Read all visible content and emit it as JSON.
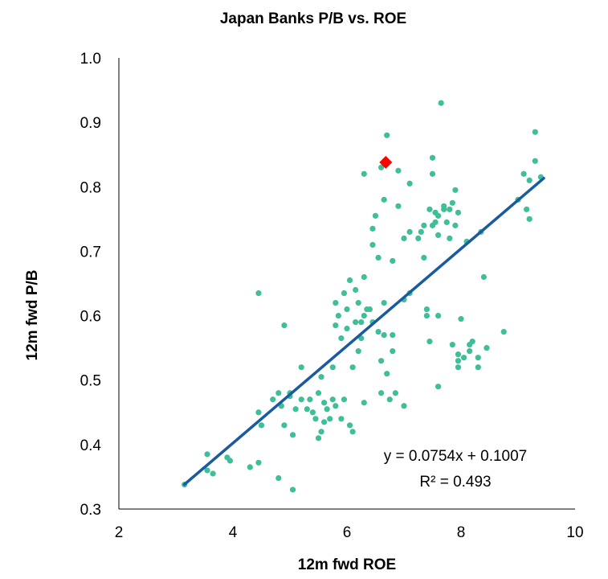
{
  "chart_data": {
    "type": "scatter",
    "title": "Japan Banks P/B vs. ROE",
    "xlabel": "12m fwd ROE",
    "ylabel": "12m fwd P/B",
    "xlim": [
      2,
      10
    ],
    "ylim": [
      0.3,
      1.0
    ],
    "xticks": [
      "2",
      "4",
      "6",
      "8",
      "10"
    ],
    "yticks": [
      "1.0",
      "0.9",
      "0.8",
      "0.7",
      "0.6",
      "0.5",
      "0.4",
      "0.3"
    ],
    "grid": false,
    "colors": {
      "points": "#3dbf9a",
      "highlight": "#ff0000",
      "trendline": "#1a5a9e",
      "axis": "#000000"
    },
    "series": [
      {
        "points": [
          [
            3.15,
            0.338
          ],
          [
            3.55,
            0.385
          ],
          [
            3.65,
            0.355
          ],
          [
            3.55,
            0.36
          ],
          [
            3.9,
            0.38
          ],
          [
            3.95,
            0.375
          ],
          [
            4.3,
            0.365
          ],
          [
            4.45,
            0.372
          ],
          [
            4.8,
            0.348
          ],
          [
            5.05,
            0.33
          ],
          [
            4.45,
            0.635
          ],
          [
            4.45,
            0.45
          ],
          [
            4.5,
            0.43
          ],
          [
            4.7,
            0.47
          ],
          [
            4.8,
            0.48
          ],
          [
            4.85,
            0.46
          ],
          [
            4.9,
            0.585
          ],
          [
            4.9,
            0.43
          ],
          [
            5.0,
            0.48
          ],
          [
            5.0,
            0.475
          ],
          [
            5.05,
            0.415
          ],
          [
            5.1,
            0.455
          ],
          [
            5.2,
            0.47
          ],
          [
            5.2,
            0.52
          ],
          [
            5.3,
            0.455
          ],
          [
            5.35,
            0.47
          ],
          [
            5.4,
            0.45
          ],
          [
            5.45,
            0.44
          ],
          [
            5.5,
            0.41
          ],
          [
            5.5,
            0.48
          ],
          [
            5.55,
            0.505
          ],
          [
            5.55,
            0.42
          ],
          [
            5.6,
            0.435
          ],
          [
            5.6,
            0.465
          ],
          [
            5.65,
            0.455
          ],
          [
            5.7,
            0.44
          ],
          [
            5.75,
            0.47
          ],
          [
            5.8,
            0.46
          ],
          [
            5.9,
            0.44
          ],
          [
            5.95,
            0.47
          ],
          [
            5.75,
            0.52
          ],
          [
            5.8,
            0.585
          ],
          [
            5.8,
            0.62
          ],
          [
            5.85,
            0.6
          ],
          [
            5.9,
            0.565
          ],
          [
            5.95,
            0.635
          ],
          [
            6.0,
            0.58
          ],
          [
            6.0,
            0.61
          ],
          [
            6.05,
            0.655
          ],
          [
            6.05,
            0.43
          ],
          [
            6.1,
            0.52
          ],
          [
            6.1,
            0.42
          ],
          [
            6.15,
            0.59
          ],
          [
            6.15,
            0.64
          ],
          [
            6.2,
            0.545
          ],
          [
            6.2,
            0.62
          ],
          [
            6.25,
            0.565
          ],
          [
            6.25,
            0.59
          ],
          [
            6.3,
            0.66
          ],
          [
            6.3,
            0.6
          ],
          [
            6.3,
            0.465
          ],
          [
            6.35,
            0.61
          ],
          [
            6.4,
            0.61
          ],
          [
            6.45,
            0.59
          ],
          [
            6.3,
            0.82
          ],
          [
            6.45,
            0.71
          ],
          [
            6.45,
            0.735
          ],
          [
            6.5,
            0.755
          ],
          [
            6.55,
            0.69
          ],
          [
            6.55,
            0.575
          ],
          [
            6.6,
            0.53
          ],
          [
            6.6,
            0.48
          ],
          [
            6.65,
            0.57
          ],
          [
            6.6,
            0.83
          ],
          [
            6.7,
            0.88
          ],
          [
            6.65,
            0.78
          ],
          [
            6.65,
            0.62
          ],
          [
            6.7,
            0.51
          ],
          [
            6.75,
            0.47
          ],
          [
            6.8,
            0.685
          ],
          [
            6.8,
            0.57
          ],
          [
            6.8,
            0.545
          ],
          [
            6.85,
            0.48
          ],
          [
            6.9,
            0.825
          ],
          [
            6.9,
            0.77
          ],
          [
            7.0,
            0.72
          ],
          [
            7.0,
            0.46
          ],
          [
            7.1,
            0.805
          ],
          [
            7.1,
            0.73
          ],
          [
            7.1,
            0.635
          ],
          [
            7.25,
            0.72
          ],
          [
            7.3,
            0.73
          ],
          [
            7.35,
            0.74
          ],
          [
            7.35,
            0.69
          ],
          [
            7.4,
            0.6
          ],
          [
            7.4,
            0.61
          ],
          [
            7.45,
            0.56
          ],
          [
            7.45,
            0.765
          ],
          [
            7.5,
            0.845
          ],
          [
            7.5,
            0.82
          ],
          [
            7.55,
            0.76
          ],
          [
            7.55,
            0.745
          ],
          [
            7.6,
            0.755
          ],
          [
            7.6,
            0.725
          ],
          [
            7.6,
            0.6
          ],
          [
            7.6,
            0.49
          ],
          [
            7.65,
            0.93
          ],
          [
            7.7,
            0.77
          ],
          [
            7.75,
            0.745
          ],
          [
            7.8,
            0.765
          ],
          [
            7.8,
            0.72
          ],
          [
            7.85,
            0.775
          ],
          [
            7.9,
            0.795
          ],
          [
            7.95,
            0.76
          ],
          [
            7.85,
            0.555
          ],
          [
            7.95,
            0.54
          ],
          [
            7.95,
            0.53
          ],
          [
            7.95,
            0.52
          ],
          [
            8.0,
            0.595
          ],
          [
            8.05,
            0.535
          ],
          [
            8.1,
            0.715
          ],
          [
            8.15,
            0.545
          ],
          [
            8.15,
            0.555
          ],
          [
            8.2,
            0.56
          ],
          [
            8.3,
            0.535
          ],
          [
            8.3,
            0.52
          ],
          [
            8.35,
            0.73
          ],
          [
            8.4,
            0.66
          ],
          [
            8.45,
            0.55
          ],
          [
            8.75,
            0.575
          ],
          [
            9.0,
            0.78
          ],
          [
            9.1,
            0.82
          ],
          [
            9.15,
            0.765
          ],
          [
            9.2,
            0.75
          ],
          [
            9.2,
            0.81
          ],
          [
            9.3,
            0.885
          ],
          [
            9.3,
            0.84
          ],
          [
            9.4,
            0.815
          ],
          [
            7.7,
            0.765
          ],
          [
            7.9,
            0.74
          ],
          [
            7.5,
            0.74
          ],
          [
            7.0,
            0.625
          ]
        ]
      },
      {
        "highlight": true,
        "points": [
          [
            6.68,
            0.838
          ]
        ]
      }
    ],
    "trendline": {
      "slope": 0.0754,
      "intercept": 0.1007,
      "x_range": [
        3.15,
        9.45
      ],
      "equation_label": "y = 0.0754x + 0.1007",
      "r2_label": "R² = 0.493"
    }
  }
}
